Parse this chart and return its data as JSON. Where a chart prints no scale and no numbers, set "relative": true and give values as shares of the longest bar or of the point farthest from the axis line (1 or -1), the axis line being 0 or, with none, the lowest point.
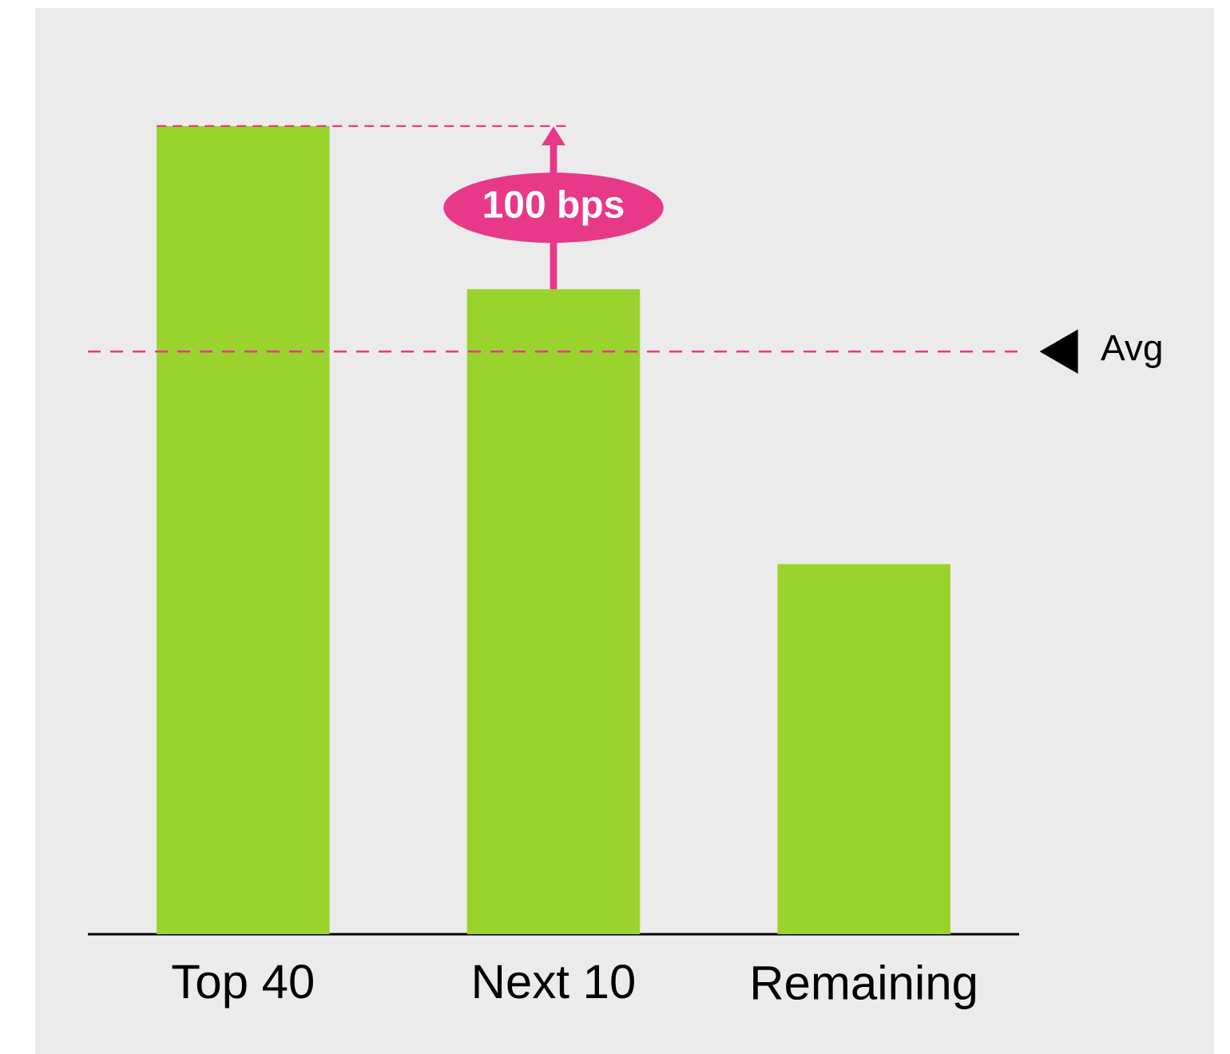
{
  "chart_data": {
    "type": "bar",
    "relative": true,
    "categories": [
      "Top 40",
      "Next 10",
      "Remaining"
    ],
    "values": [
      1,
      0.798,
      0.458
    ],
    "color": "#9ad22e",
    "ref_lines": [
      {
        "axis": "y",
        "value": 0.721,
        "label": "Avg",
        "color": "#e8388a",
        "line_style": "dashed"
      }
    ],
    "annotations": [
      "100 bps"
    ]
  }
}
